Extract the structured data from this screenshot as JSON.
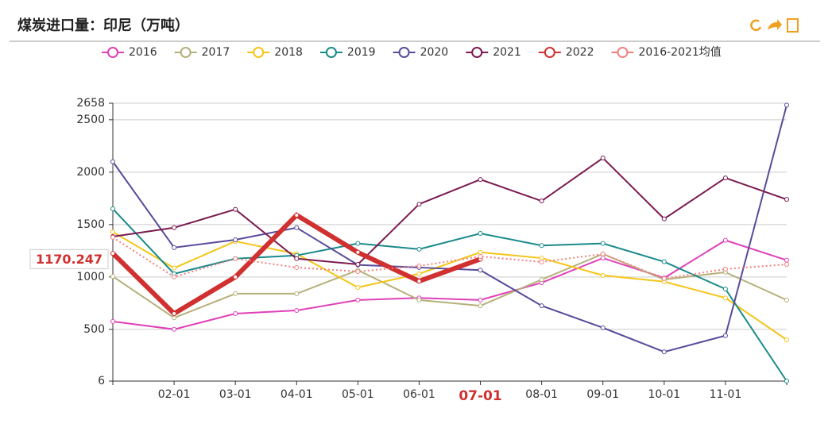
{
  "chart_data": {
    "type": "line",
    "title": "煤炭进口量：印尼（万吨）",
    "categories": [
      null,
      "02-01",
      "03-01",
      "04-01",
      "05-01",
      "06-01",
      "07-01",
      "08-01",
      "09-01",
      "10-01",
      "11-01",
      null
    ],
    "highlight_index": 6,
    "crosshair_value": 1170.247,
    "ylim": [
      6,
      2658
    ],
    "yticks": [
      6,
      500,
      1000,
      1500,
      2000,
      2500,
      2658
    ],
    "grid": true,
    "legend": "top",
    "series": [
      {
        "name": "2016",
        "color": "#e040b8",
        "values": [
          575,
          500,
          650,
          680,
          780,
          800,
          780,
          945,
          1180,
          990,
          1350,
          1160
        ]
      },
      {
        "name": "2017",
        "color": "#b5b07a",
        "values": [
          1005,
          610,
          840,
          840,
          1065,
          780,
          725,
          975,
          1220,
          975,
          1045,
          780
        ]
      },
      {
        "name": "2018",
        "color": "#f5c518",
        "values": [
          1430,
          1085,
          1340,
          1220,
          900,
          1030,
          1235,
          1180,
          1015,
          955,
          800,
          400
        ]
      },
      {
        "name": "2019",
        "color": "#1a8a8a",
        "values": [
          1650,
          1030,
          1175,
          1205,
          1320,
          1265,
          1415,
          1300,
          1320,
          1145,
          885,
          6
        ]
      },
      {
        "name": "2020",
        "color": "#5a4a9a",
        "values": [
          2100,
          1280,
          1355,
          1470,
          1115,
          1090,
          1065,
          725,
          515,
          285,
          440,
          2640
        ]
      },
      {
        "name": "2021",
        "color": "#7a1a50",
        "values": [
          1385,
          1470,
          1645,
          1175,
          1120,
          1695,
          1930,
          1725,
          2135,
          1555,
          1945,
          1740
        ]
      },
      {
        "name": "2022",
        "color": "#d0302f",
        "width": 6,
        "values": [
          1225,
          650,
          1000,
          1590,
          1235,
          960,
          1170.247,
          null,
          null,
          null,
          null,
          null
        ]
      },
      {
        "name": "2016-2021均值",
        "color": "#f08080",
        "dashed": true,
        "values": [
          1378,
          1000,
          1174,
          1090,
          1052,
          1105,
          1196,
          1143,
          1219,
          984,
          1075,
          1120
        ]
      }
    ]
  }
}
